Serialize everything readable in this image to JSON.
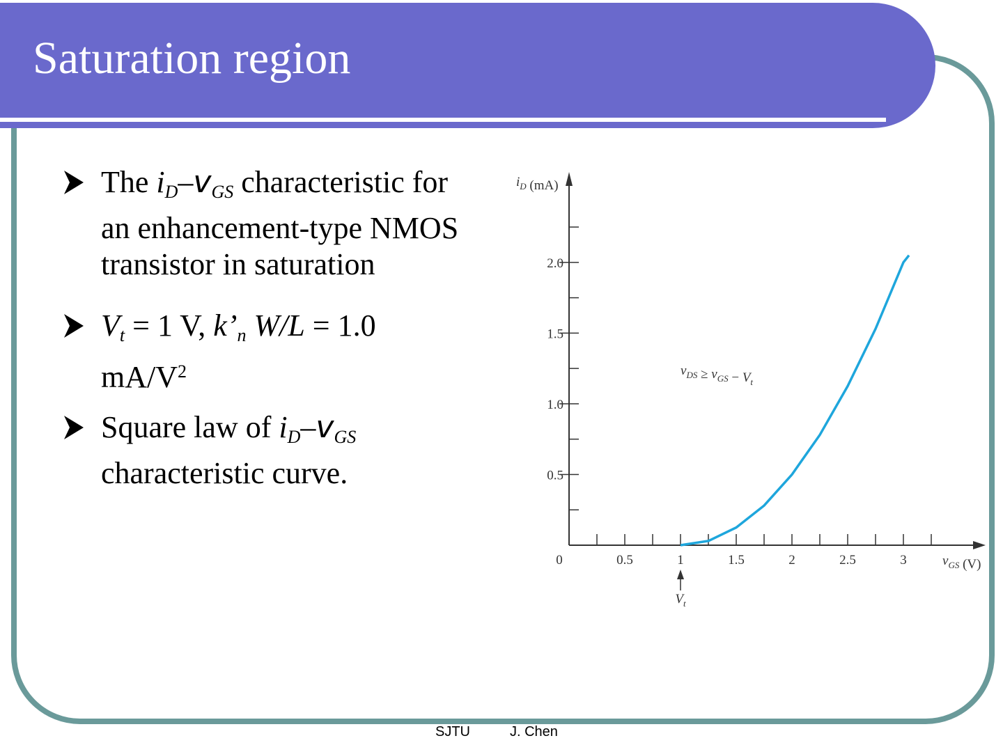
{
  "header": {
    "title": "Saturation region"
  },
  "bullets": [
    {
      "parts": [
        "The ",
        "i",
        "D",
        "–",
        "v",
        "GS",
        " characteristic for",
        "an enhancement-type NMOS",
        "transistor in saturation"
      ]
    },
    {
      "parts": [
        "V",
        "t",
        " = 1 V, ",
        "k’",
        "n",
        " ",
        "W/L",
        " = 1.0",
        "mA/V",
        "2"
      ]
    },
    {
      "parts": [
        "Square law of ",
        "i",
        "D",
        "–",
        "v",
        "GS",
        "characteristic curve."
      ]
    }
  ],
  "footer": {
    "left": "SJTU",
    "right": "J. Chen"
  },
  "chart_data": {
    "type": "line",
    "ylabel": [
      "i",
      "D",
      " (mA)"
    ],
    "xlabel": [
      "v",
      "GS",
      " (V)"
    ],
    "annotation": [
      "v",
      "DS",
      " ≥ ",
      "v",
      "GS",
      " − ",
      "V",
      "t"
    ],
    "marker_label": [
      "V",
      "t"
    ],
    "marker_x": 1,
    "x": [
      1,
      1.25,
      1.5,
      1.75,
      2,
      2.25,
      2.5,
      2.75,
      3,
      3.05
    ],
    "values": [
      0,
      0.03,
      0.125,
      0.28,
      0.5,
      0.78,
      1.125,
      1.53,
      2.0,
      2.05
    ],
    "color": "#1ea6dc",
    "xlim": [
      0,
      3.7
    ],
    "ylim": [
      0,
      2.6
    ],
    "xticks": [
      0,
      0.5,
      1,
      1.5,
      2,
      2.5,
      3
    ],
    "xminorticks": [
      0.25,
      0.75,
      1.25,
      1.75,
      2.25,
      2.75,
      3.25
    ],
    "yticks": [
      0.5,
      {
        "value": 1,
        "label": "1.0"
      },
      1.5,
      {
        "value": 2,
        "label": "2.0"
      }
    ],
    "yminorticks": [
      0.25,
      0.75,
      1.25,
      1.75,
      2.25
    ]
  }
}
